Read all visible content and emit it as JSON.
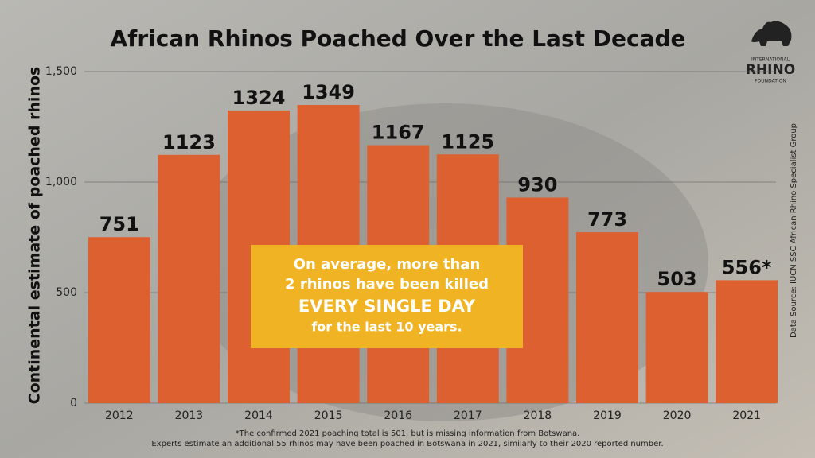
{
  "chart_data": {
    "type": "bar",
    "title": "African Rhinos Poached Over the Last Decade",
    "y_label": "Continental estimate of poached rhinos",
    "categories": [
      "2012",
      "2013",
      "2014",
      "2015",
      "2016",
      "2017",
      "2018",
      "2019",
      "2020",
      "2021"
    ],
    "values": [
      751,
      1123,
      1324,
      1349,
      1167,
      1125,
      930,
      773,
      503,
      556
    ],
    "value_labels": [
      "751",
      "1123",
      "1324",
      "1349",
      "1167",
      "1125",
      "930",
      "773",
      "503",
      "556*"
    ],
    "color": "#dd6031",
    "ylim": [
      0,
      1500
    ],
    "yticks": [
      0,
      500,
      {
        "value": 1000,
        "label": "1,000"
      },
      {
        "value": 1500,
        "label": "1,500"
      }
    ],
    "grid": true,
    "annotation": [
      "On average, more than",
      "2 rhinos have been killed",
      "EVERY SINGLE DAY",
      "for the last 10 years."
    ],
    "source": "Data Source: IUCN SSC African Rhino Specialist Group",
    "footnote": [
      "*The confirmed 2021 poaching total is 501, but is missing information from Botswana.",
      "Experts estimate an additional 55 rhinos may have been poached in Botswana in 2021, similarly to their 2020 reported number."
    ],
    "logo": [
      "INTERNATIONAL",
      "RHINO",
      "FOUNDATION"
    ]
  }
}
